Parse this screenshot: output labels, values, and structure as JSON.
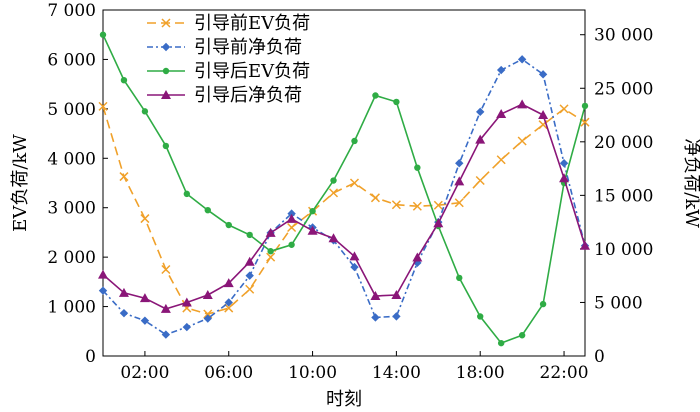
{
  "chart_data": {
    "type": "line",
    "xlabel": "时刻",
    "ylabel_left": "EV负荷/kW",
    "ylabel_right": "净负荷/kW",
    "x": [
      0,
      1,
      2,
      3,
      4,
      5,
      6,
      7,
      8,
      9,
      10,
      11,
      12,
      13,
      14,
      15,
      16,
      17,
      18,
      19,
      20,
      21,
      22,
      23
    ],
    "xlim": [
      0,
      23
    ],
    "x_ticks": [
      {
        "value": 2,
        "label": "02:00"
      },
      {
        "value": 6,
        "label": "06:00"
      },
      {
        "value": 10,
        "label": "10:00"
      },
      {
        "value": 14,
        "label": "14:00"
      },
      {
        "value": 18,
        "label": "18:00"
      },
      {
        "value": 22,
        "label": "22:00"
      }
    ],
    "y_left": {
      "lim": [
        0,
        7000
      ],
      "ticks": [
        0,
        1000,
        2000,
        3000,
        4000,
        5000,
        6000,
        7000
      ],
      "tick_labels": [
        "0",
        "1 000",
        "2 000",
        "3 000",
        "4 000",
        "5 000",
        "6 000",
        "7 000"
      ]
    },
    "y_right": {
      "lim": [
        0,
        32308
      ],
      "ticks": [
        0,
        5000,
        10000,
        15000,
        20000,
        25000,
        30000
      ],
      "tick_labels": [
        "0",
        "5 000",
        "10 000",
        "15 000",
        "20 000",
        "25 000",
        "30 000"
      ]
    },
    "legend_position": "top-center",
    "series": [
      {
        "name": "引导前EV负荷",
        "axis": "left",
        "color": "#f0a12a",
        "dash": "9,5",
        "marker": "x",
        "values": [
          5050,
          3630,
          2780,
          1750,
          970,
          850,
          970,
          1350,
          2000,
          2600,
          2930,
          3300,
          3500,
          3200,
          3060,
          3030,
          3050,
          3100,
          3550,
          3970,
          4350,
          4680,
          5000,
          4730
        ]
      },
      {
        "name": "引导前净负荷",
        "axis": "right",
        "color": "#3a6cc6",
        "dash": "6,3,2,3",
        "marker": "diamond",
        "values": [
          6100,
          4000,
          3300,
          2000,
          2700,
          3500,
          5000,
          7500,
          11500,
          13300,
          12000,
          10800,
          8300,
          3600,
          3700,
          8700,
          12500,
          18000,
          22800,
          26700,
          27700,
          26300,
          18000,
          10300
        ]
      },
      {
        "name": "引导后EV负荷",
        "axis": "left",
        "color": "#2fac45",
        "dash": "",
        "marker": "dot",
        "values": [
          6500,
          5580,
          4950,
          4250,
          3280,
          2950,
          2650,
          2450,
          2120,
          2250,
          2930,
          3550,
          4350,
          5270,
          5140,
          3810,
          2630,
          1580,
          800,
          260,
          420,
          1050,
          3500,
          5060
        ]
      },
      {
        "name": "引导后净负荷",
        "axis": "right",
        "color": "#8a1678",
        "dash": "",
        "marker": "triangle",
        "values": [
          7600,
          5900,
          5400,
          4400,
          5000,
          5700,
          6800,
          8800,
          11500,
          12800,
          11700,
          11000,
          9300,
          5600,
          5700,
          9200,
          12400,
          16300,
          20200,
          22600,
          23500,
          22500,
          16600,
          10300
        ]
      }
    ]
  }
}
